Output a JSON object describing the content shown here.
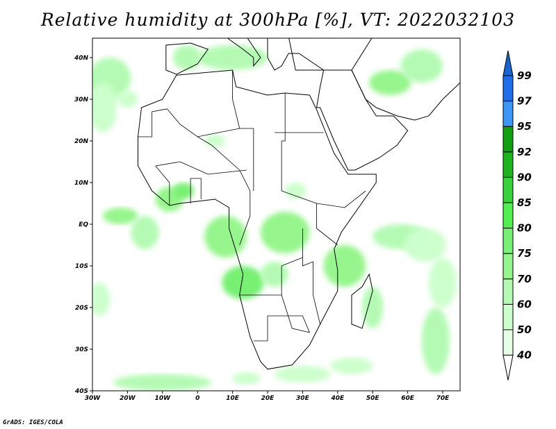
{
  "title": "Relative humidity at 300hPa [%], VT: 2022032103",
  "credit": "GrADS: IGES/COLA",
  "lat_labels": [
    "40N",
    "30N",
    "20N",
    "10N",
    "EQ",
    "10S",
    "20S",
    "30S",
    "40S"
  ],
  "lat_values": [
    40,
    30,
    20,
    10,
    0,
    -10,
    -20,
    -30,
    -40
  ],
  "lon_labels": [
    "30W",
    "20W",
    "10W",
    "0",
    "10E",
    "20E",
    "30E",
    "40E",
    "50E",
    "60E",
    "70E"
  ],
  "lon_values": [
    -30,
    -20,
    -10,
    0,
    10,
    20,
    30,
    40,
    50,
    60,
    70
  ],
  "colorbar": {
    "labels": [
      "40",
      "50",
      "60",
      "70",
      "75",
      "80",
      "85",
      "90",
      "92",
      "95",
      "97",
      "99"
    ],
    "colors": [
      "#e6ffe6",
      "#ccffcc",
      "#b4fab4",
      "#96f58c",
      "#78f073",
      "#50f050",
      "#37d23c",
      "#1eb41e",
      "#0fa00f",
      "#3c96f5",
      "#1e6eeb",
      "#1464d2"
    ],
    "under_color": "#ffffff",
    "over_color": "#1464d2"
  }
}
